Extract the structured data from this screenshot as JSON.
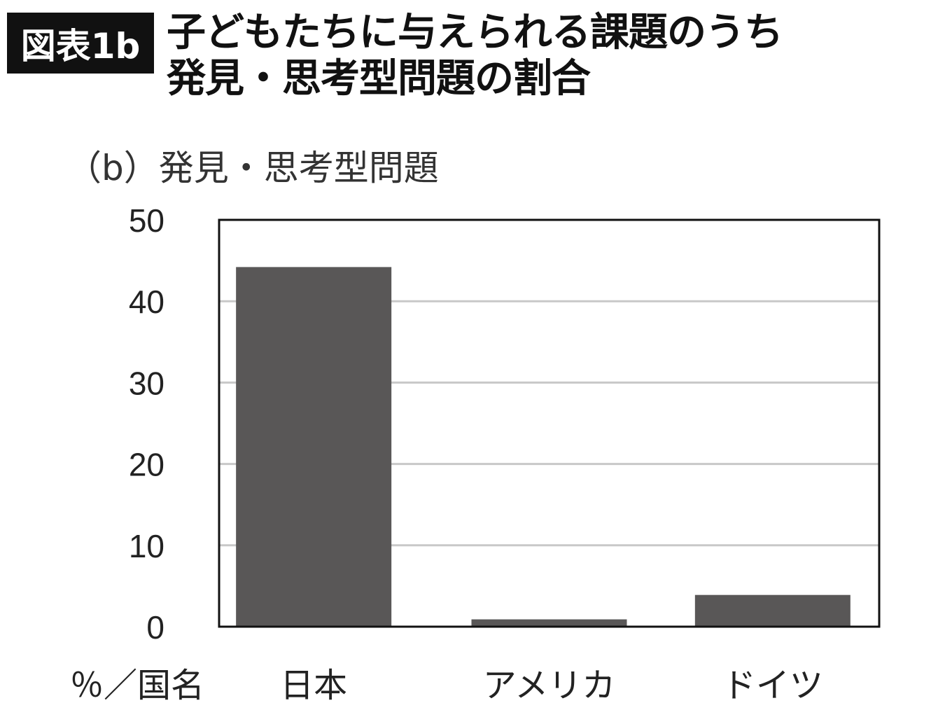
{
  "figure_label": "図表1b",
  "title_lines": [
    "子どもたちに与えられる課題のうち",
    "発見・思考型問題の割合"
  ],
  "chart_data": {
    "type": "bar",
    "title": "（b）発見・思考型問題",
    "xlabel": "％／国名",
    "ylabel": "",
    "categories": [
      "日本",
      "アメリカ",
      "ドイツ"
    ],
    "values": [
      44.2,
      0.9,
      3.9
    ],
    "ylim": [
      0,
      50
    ],
    "yticks": [
      0,
      10,
      20,
      30,
      40,
      50
    ],
    "grid": true,
    "legend": "none",
    "colors": {
      "bar": "#595757",
      "grid": "#c8c8c8",
      "frame": "#111111"
    }
  }
}
